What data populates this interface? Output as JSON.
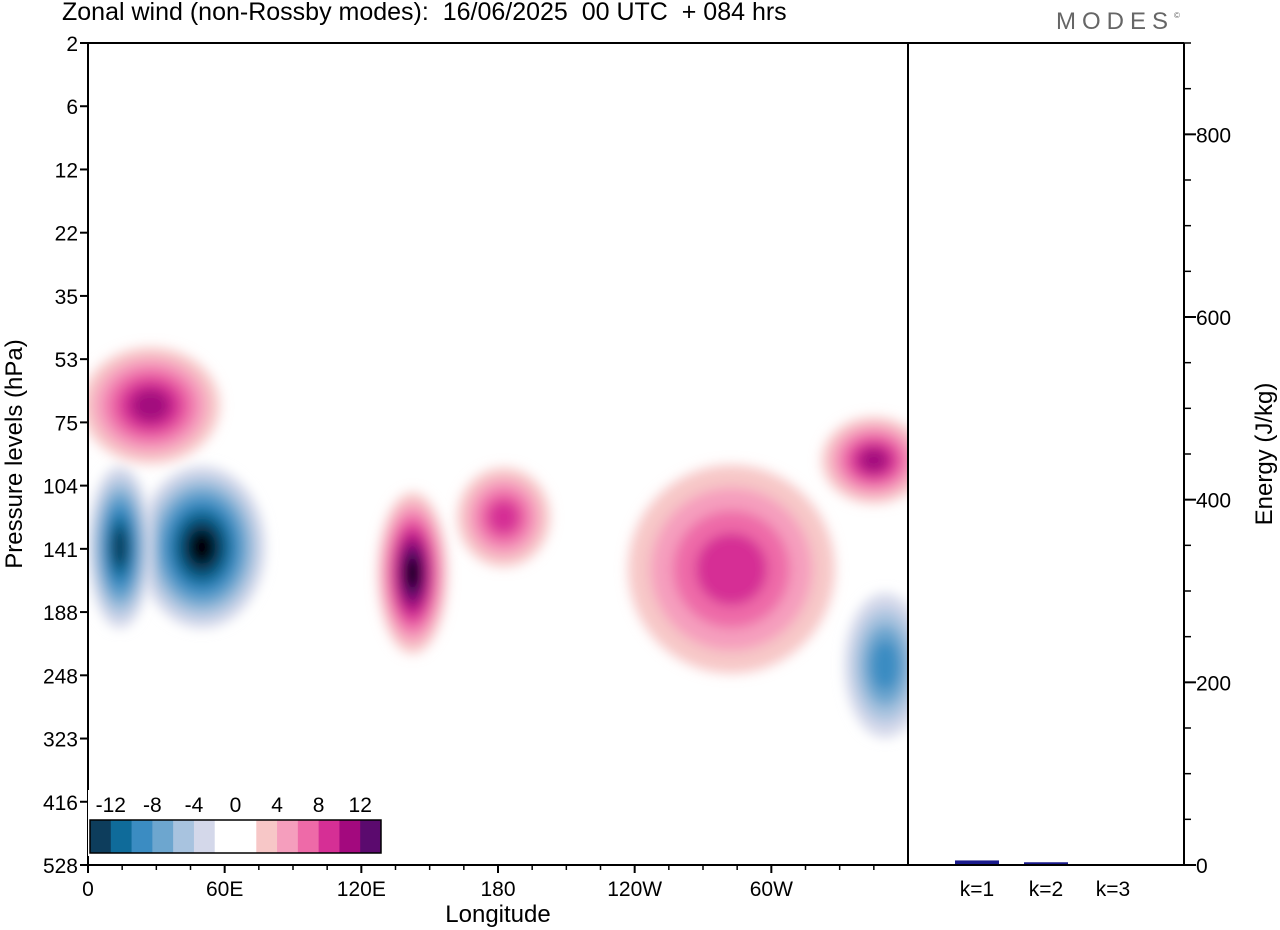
{
  "header": {
    "title": "Zonal wind (non-Rossby modes):  16/06/2025  00 UTC  + 084 hrs",
    "brand": "MODES",
    "brand_mark": "©"
  },
  "chart_data": [
    {
      "type": "heatmap",
      "title": "Zonal wind (non-Rossby modes):  16/06/2025  00 UTC  + 084 hrs",
      "xlabel": "Longitude",
      "ylabel": "Pressure levels (hPa)",
      "x_ticks": [
        "0",
        "60E",
        "120E",
        "180",
        "120W",
        "60W"
      ],
      "x_tick_values": [
        0,
        60,
        120,
        180,
        240,
        300
      ],
      "xlim": [
        0,
        360
      ],
      "y_ticks": [
        "2",
        "6",
        "12",
        "22",
        "35",
        "53",
        "75",
        "104",
        "141",
        "188",
        "248",
        "323",
        "416",
        "528"
      ],
      "colorbar": {
        "labels": [
          "-12",
          "-8",
          "-4",
          "0",
          "4",
          "8",
          "12"
        ],
        "colors": [
          "#0d3d5c",
          "#0f6b9a",
          "#3b8cc2",
          "#6da6cf",
          "#a8c3df",
          "#d4d8ea",
          "#ffffff",
          "#ffffff",
          "#f7c7c7",
          "#f59ebd",
          "#ee6aa8",
          "#d62f95",
          "#a3097e",
          "#5b0a6e"
        ]
      },
      "features": [
        {
          "sign": "negative",
          "lon": [
            30,
            70
          ],
          "level": [
            104,
            188
          ],
          "min": -14
        },
        {
          "sign": "negative",
          "lon": [
            8,
            20
          ],
          "level": [
            104,
            188
          ],
          "min": -12
        },
        {
          "sign": "positive",
          "lon": [
            135,
            150
          ],
          "level": [
            118,
            210
          ],
          "max": 14
        },
        {
          "sign": "positive",
          "lon": [
            5,
            50
          ],
          "level": [
            55,
            85
          ],
          "max": 10
        },
        {
          "sign": "positive",
          "lon": [
            170,
            195
          ],
          "level": [
            104,
            141
          ],
          "max": 8
        },
        {
          "sign": "positive",
          "lon": [
            245,
            320
          ],
          "level": [
            104,
            230
          ],
          "max": 8
        },
        {
          "sign": "positive",
          "lon": [
            330,
            360
          ],
          "level": [
            80,
            104
          ],
          "max": 10
        },
        {
          "sign": "negative",
          "lon": [
            340,
            360
          ],
          "level": [
            188,
            300
          ],
          "min": -8
        }
      ]
    },
    {
      "type": "bar",
      "categories": [
        "k=1",
        "k=2",
        "k=3"
      ],
      "values": [
        5,
        3,
        1
      ],
      "ylabel": "Energy (J/kg)",
      "ylim": [
        0,
        900
      ],
      "y_ticks": [
        0,
        200,
        400,
        600,
        800
      ],
      "bar_color": "#1a1a8c"
    }
  ]
}
